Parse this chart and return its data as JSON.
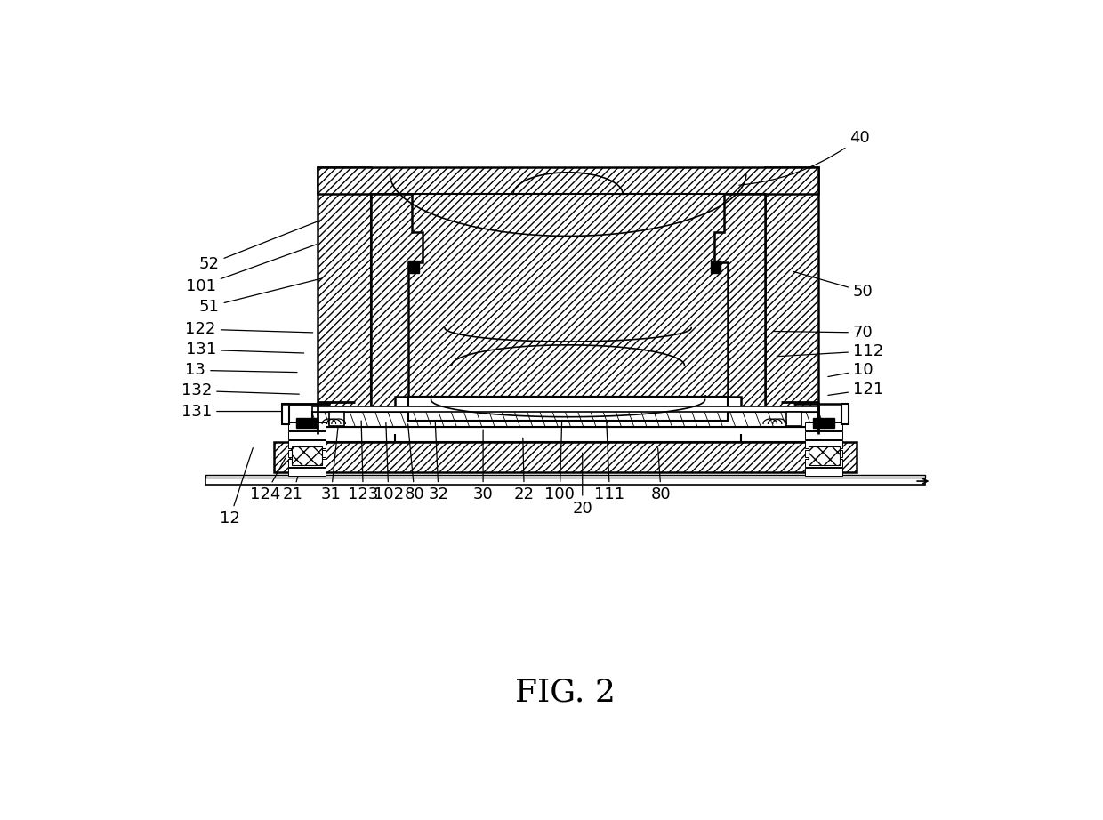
{
  "title": "FIG. 2",
  "bg_color": "#ffffff",
  "line_color": "#000000",
  "fig_width": 12.4,
  "fig_height": 9.22
}
